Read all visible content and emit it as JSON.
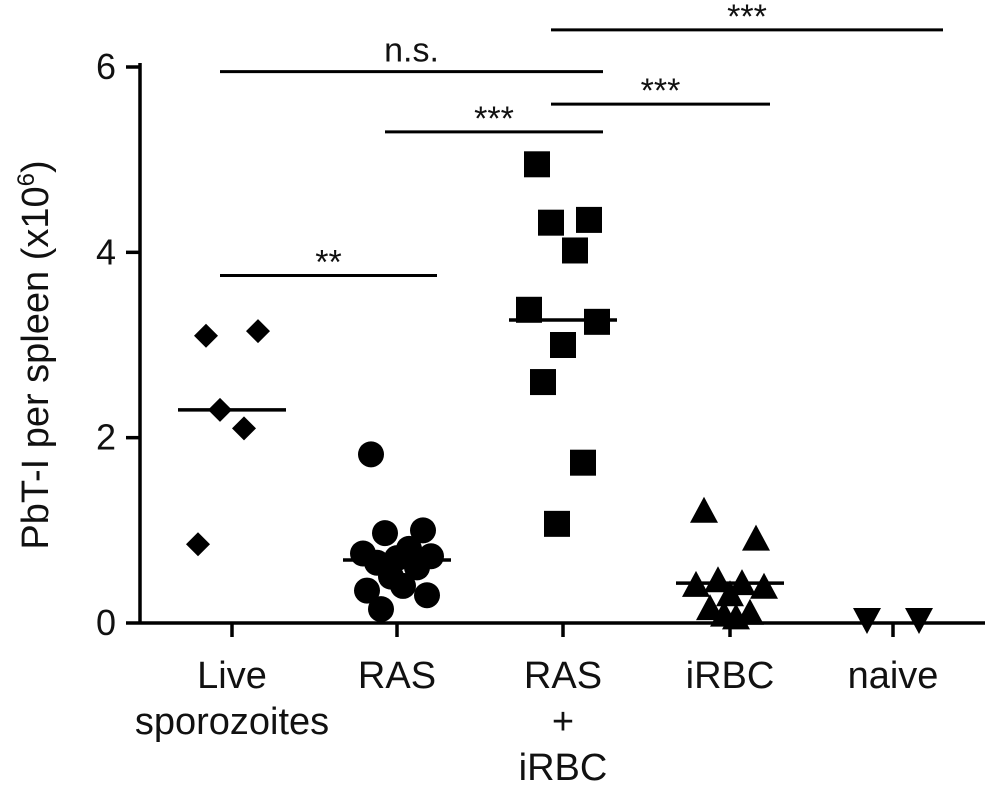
{
  "chart_data": {
    "type": "scatter",
    "ylabel_main": "PbT-I per spleen (x10",
    "ylabel_exp": "6",
    "ylabel_close": ")",
    "ylim": [
      0,
      6
    ],
    "yticks": [
      0,
      2,
      4,
      6
    ],
    "ytick_labels": [
      "0",
      "2",
      "4",
      "6"
    ],
    "grid": false,
    "groups": [
      {
        "lines": [
          "Live",
          "sporozoites"
        ],
        "marker": "diamond",
        "median": 2.3,
        "values": [
          3.1,
          3.15,
          2.3,
          2.1,
          0.85
        ]
      },
      {
        "lines": [
          "RAS"
        ],
        "marker": "circle",
        "median": 0.68,
        "values": [
          1.82,
          1.0,
          0.97,
          0.8,
          0.75,
          0.72,
          0.7,
          0.65,
          0.6,
          0.5,
          0.4,
          0.35,
          0.3,
          0.15
        ]
      },
      {
        "lines": [
          "RAS",
          "+",
          "iRBC"
        ],
        "marker": "square",
        "median": 3.27,
        "values": [
          4.95,
          4.35,
          4.32,
          4.02,
          3.38,
          3.25,
          3.0,
          2.6,
          1.73,
          1.07
        ]
      },
      {
        "lines": [
          "iRBC"
        ],
        "marker": "triangle-up",
        "median": 0.43,
        "values": [
          1.2,
          0.9,
          0.45,
          0.42,
          0.4,
          0.38,
          0.3,
          0.15,
          0.1,
          0.08,
          0.05
        ]
      },
      {
        "lines": [
          "naive"
        ],
        "marker": "triangle-down",
        "median": 0.0,
        "values": [
          0.0,
          0.0
        ]
      }
    ],
    "significance": [
      {
        "label": "**",
        "from": 0,
        "to": 1,
        "y": 3.75
      },
      {
        "label": "n.s.",
        "from": 0,
        "to": 2,
        "y": 5.95
      },
      {
        "label": "***",
        "from": 1,
        "to": 2,
        "y": 5.3
      },
      {
        "label": "***",
        "from": 2,
        "to": 3,
        "y": 5.6
      },
      {
        "label": "***",
        "from": 2,
        "to": 4,
        "y": 6.4
      }
    ]
  }
}
